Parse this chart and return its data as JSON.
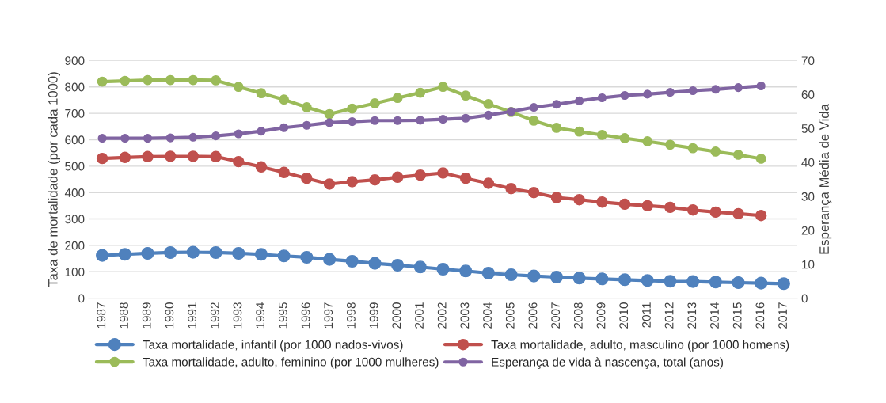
{
  "chart_data": {
    "type": "line",
    "ylabel": "Taxa de mortalidade (por cada 1000)",
    "y2label": "Esperança Média de Vida",
    "categories": [
      "1987",
      "1988",
      "1989",
      "1990",
      "1991",
      "1992",
      "1993",
      "1994",
      "1995",
      "1996",
      "1997",
      "1998",
      "1999",
      "2000",
      "2001",
      "2002",
      "2003",
      "2004",
      "2005",
      "2006",
      "2007",
      "2008",
      "2009",
      "2010",
      "2011",
      "2012",
      "2013",
      "2014",
      "2015",
      "2016",
      "2017"
    ],
    "series": [
      {
        "name": "Taxa mortalidade, infantil (por 1000 nados-vivos)",
        "color": "#4f81bd",
        "values": [
          162,
          166,
          170,
          173,
          174,
          173,
          170,
          166,
          160,
          155,
          147,
          140,
          132,
          125,
          118,
          110,
          103,
          95,
          89,
          84,
          80,
          76,
          73,
          70,
          67,
          64,
          63,
          61,
          59,
          57,
          55
        ]
      },
      {
        "name": "Taxa mortalidade, adulto, masculino (por 1000 homens)",
        "color": "#c0504d",
        "values": [
          529,
          533,
          536,
          537,
          537,
          536,
          517,
          497,
          476,
          454,
          432,
          441,
          448,
          458,
          466,
          474,
          454,
          435,
          415,
          400,
          381,
          373,
          364,
          356,
          350,
          344,
          334,
          326,
          320,
          313,
          null
        ]
      },
      {
        "name": "Taxa mortalidade, adulto, feminino (por 1000 mulheres)",
        "color": "#9bbb59",
        "values": [
          820,
          823,
          826,
          826,
          826,
          825,
          800,
          776,
          752,
          723,
          697,
          718,
          738,
          758,
          778,
          800,
          767,
          735,
          705,
          672,
          645,
          631,
          618,
          606,
          594,
          581,
          568,
          555,
          543,
          528,
          null
        ]
      },
      {
        "name": "Esperança de vida à nascença, total (anos)",
        "color": "#8064a2",
        "axis": "y2",
        "values": [
          47.1,
          47.1,
          47.1,
          47.2,
          47.4,
          47.8,
          48.4,
          49.2,
          50.2,
          50.9,
          51.7,
          52.0,
          52.3,
          52.3,
          52.4,
          52.7,
          53.0,
          53.9,
          55.0,
          56.2,
          57.1,
          58.1,
          59.0,
          59.7,
          60.1,
          60.6,
          61.1,
          61.5,
          62.0,
          62.5,
          null
        ]
      }
    ],
    "ylim": [
      0,
      900
    ],
    "yticks": [
      0,
      100,
      200,
      300,
      400,
      500,
      600,
      700,
      800,
      900
    ],
    "y2lim": [
      0,
      70
    ],
    "y2ticks": [
      0,
      10,
      20,
      30,
      40,
      50,
      60,
      70
    ],
    "grid": "y",
    "legend": "bottom",
    "marker": "circle",
    "line_style": "solid"
  }
}
